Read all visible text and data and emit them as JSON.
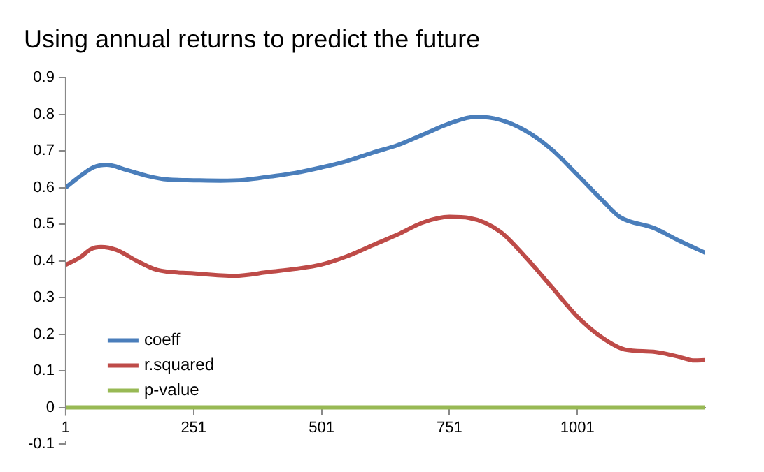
{
  "chart_data": {
    "type": "line",
    "title": "Using annual returns to predict the future",
    "xlim": [
      1,
      1251
    ],
    "xticks": [
      1,
      251,
      501,
      751,
      1001
    ],
    "ylim": [
      -0.1,
      0.9
    ],
    "yticks": [
      -0.1,
      0,
      0.1,
      0.2,
      0.3,
      0.4,
      0.5,
      0.6,
      0.7,
      0.8,
      0.9
    ],
    "legend": "bottom left",
    "marker": "none",
    "line_style": "solid",
    "grid": false,
    "series": [
      {
        "name": "coeff",
        "color": "#4a7ebb",
        "x": [
          1,
          30,
          55,
          81,
          120,
          160,
          200,
          251,
          304,
          350,
          400,
          450,
          501,
          550,
          600,
          650,
          700,
          751,
          802,
          850,
          900,
          950,
          1001,
          1050,
          1085,
          1150,
          1200,
          1251
        ],
        "values": [
          0.6,
          0.632,
          0.655,
          0.662,
          0.648,
          0.632,
          0.622,
          0.62,
          0.619,
          0.621,
          0.63,
          0.64,
          0.655,
          0.672,
          0.695,
          0.716,
          0.745,
          0.775,
          0.793,
          0.785,
          0.755,
          0.705,
          0.635,
          0.565,
          0.519,
          0.49,
          0.455,
          0.422
        ]
      },
      {
        "name": "r.squared",
        "color": "#be4b48",
        "x": [
          1,
          30,
          50,
          70,
          100,
          140,
          180,
          251,
          331,
          400,
          450,
          501,
          550,
          600,
          650,
          700,
          751,
          790,
          850,
          900,
          950,
          1001,
          1050,
          1094,
          1150,
          1200,
          1230,
          1251
        ],
        "values": [
          0.389,
          0.41,
          0.432,
          0.438,
          0.43,
          0.4,
          0.375,
          0.366,
          0.359,
          0.37,
          0.378,
          0.39,
          0.412,
          0.442,
          0.472,
          0.505,
          0.52,
          0.517,
          0.48,
          0.41,
          0.33,
          0.248,
          0.19,
          0.158,
          0.152,
          0.138,
          0.128,
          0.129
        ]
      },
      {
        "name": "p-value",
        "color": "#98b954",
        "x": [
          1,
          1251
        ],
        "values": [
          0,
          0
        ]
      }
    ]
  }
}
